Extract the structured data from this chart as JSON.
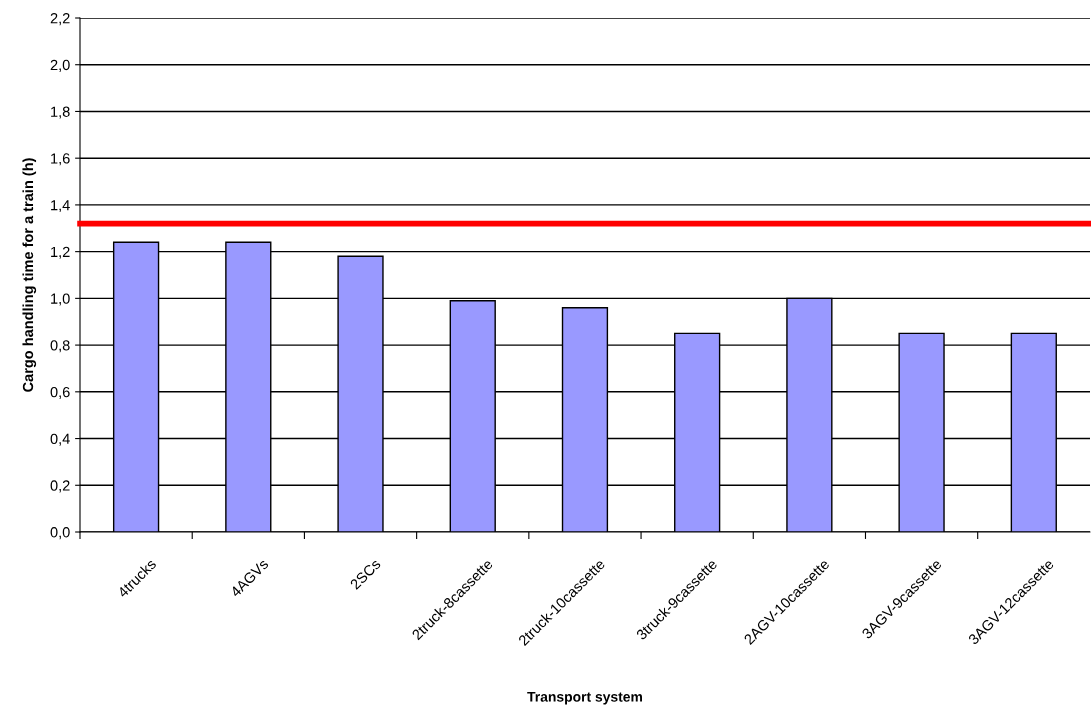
{
  "chart_data": {
    "type": "bar",
    "xlabel": "Transport system",
    "ylabel": "Cargo handling time for a train (h)",
    "categories": [
      "4trucks",
      "4AGVs",
      "2SCs",
      "2truck-8cassette",
      "2truck-10cassette",
      "3truck-9cassette",
      "2AGV-10cassette",
      "3AGV-9cassette",
      "3AGV-12cassette"
    ],
    "values": [
      1.24,
      1.24,
      1.18,
      0.99,
      0.96,
      0.85,
      1.0,
      0.85,
      0.85
    ],
    "color": "#9999ff",
    "ylim": [
      0,
      2.2
    ],
    "yticks": [
      {
        "value": 0,
        "label": "0,0"
      },
      {
        "value": 0.2,
        "label": "0,2"
      },
      {
        "value": 0.4,
        "label": "0,4"
      },
      {
        "value": 0.6,
        "label": "0,6"
      },
      {
        "value": 0.8,
        "label": "0,8"
      },
      {
        "value": 1.0,
        "label": "1,0"
      },
      {
        "value": 1.2,
        "label": "1,2"
      },
      {
        "value": 1.4,
        "label": "1,4"
      },
      {
        "value": 1.6,
        "label": "1,6"
      },
      {
        "value": 1.8,
        "label": "1,8"
      },
      {
        "value": 2.0,
        "label": "2,0"
      },
      {
        "value": 2.2,
        "label": "2,2"
      }
    ],
    "ref_lines": [
      {
        "axis": "y",
        "value": 1.32,
        "color": "#ff0000"
      }
    ],
    "grid": "y",
    "legend": false
  }
}
